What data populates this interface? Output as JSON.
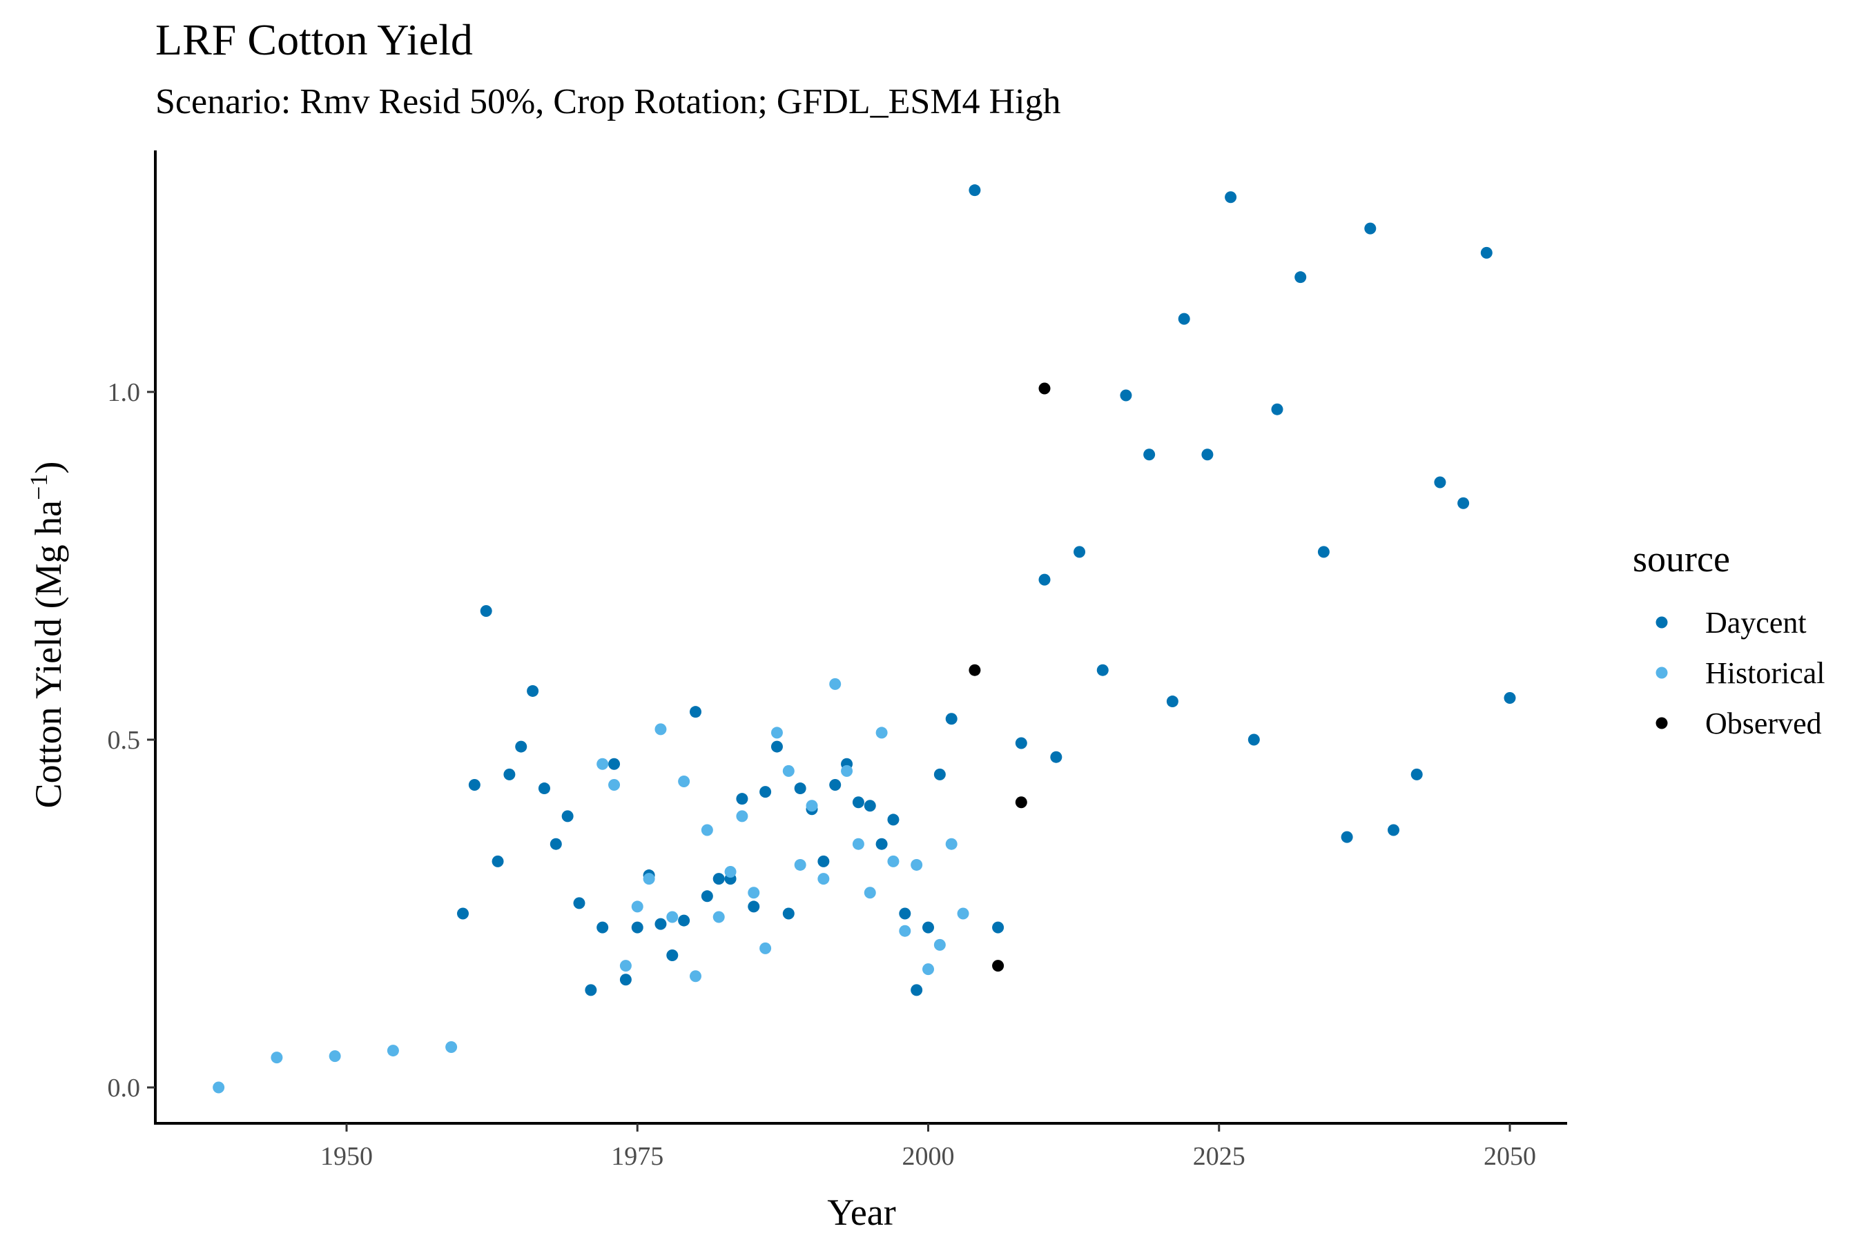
{
  "chart_data": {
    "type": "scatter",
    "title": "LRF Cotton Yield",
    "subtitle": "Scenario: Rmv Resid 50%, Crop Rotation; GFDL_ESM4 High",
    "xlabel": "Year",
    "ylabel_main": "Cotton Yield (Mg ha",
    "ylabel_sup": "−1",
    "ylabel_close": ")",
    "xlim": [
      1934,
      2055
    ],
    "ylim": [
      -0.06,
      1.35
    ],
    "xticks": [
      1950,
      1975,
      2000,
      2025,
      2050
    ],
    "xtick_labels": [
      "1950",
      "1975",
      "2000",
      "2025",
      "2050"
    ],
    "yticks": [
      0.0,
      0.5,
      1.0
    ],
    "ytick_labels": [
      "0.0",
      "0.5",
      "1.0"
    ],
    "grid": false,
    "legend": {
      "title": "source",
      "position": "right"
    },
    "series": [
      {
        "name": "Daycent",
        "color": "#0072B2",
        "points": [
          [
            1960,
            0.25
          ],
          [
            1961,
            0.435
          ],
          [
            1962,
            0.685
          ],
          [
            1963,
            0.325
          ],
          [
            1964,
            0.45
          ],
          [
            1965,
            0.49
          ],
          [
            1966,
            0.57
          ],
          [
            1967,
            0.43
          ],
          [
            1968,
            0.35
          ],
          [
            1969,
            0.39
          ],
          [
            1970,
            0.265
          ],
          [
            1971,
            0.14
          ],
          [
            1972,
            0.23
          ],
          [
            1973,
            0.465
          ],
          [
            1974,
            0.155
          ],
          [
            1975,
            0.23
          ],
          [
            1976,
            0.305
          ],
          [
            1977,
            0.235
          ],
          [
            1978,
            0.19
          ],
          [
            1979,
            0.24
          ],
          [
            1980,
            0.54
          ],
          [
            1981,
            0.275
          ],
          [
            1982,
            0.3
          ],
          [
            1983,
            0.3
          ],
          [
            1984,
            0.415
          ],
          [
            1985,
            0.26
          ],
          [
            1986,
            0.425
          ],
          [
            1987,
            0.49
          ],
          [
            1988,
            0.25
          ],
          [
            1989,
            0.43
          ],
          [
            1990,
            0.4
          ],
          [
            1991,
            0.325
          ],
          [
            1992,
            0.435
          ],
          [
            1993,
            0.465
          ],
          [
            1994,
            0.41
          ],
          [
            1995,
            0.405
          ],
          [
            1996,
            0.35
          ],
          [
            1997,
            0.385
          ],
          [
            1998,
            0.25
          ],
          [
            1999,
            0.14
          ],
          [
            2000,
            0.23
          ],
          [
            2001,
            0.45
          ],
          [
            2002,
            0.53
          ],
          [
            2004,
            1.29
          ],
          [
            2006,
            0.23
          ],
          [
            2008,
            0.495
          ],
          [
            2010,
            0.73
          ],
          [
            2011,
            0.475
          ],
          [
            2013,
            0.77
          ],
          [
            2015,
            0.6
          ],
          [
            2017,
            0.995
          ],
          [
            2019,
            0.91
          ],
          [
            2021,
            0.555
          ],
          [
            2022,
            1.105
          ],
          [
            2024,
            0.91
          ],
          [
            2026,
            1.28
          ],
          [
            2028,
            0.5
          ],
          [
            2030,
            0.975
          ],
          [
            2032,
            1.165
          ],
          [
            2034,
            0.77
          ],
          [
            2036,
            0.36
          ],
          [
            2038,
            1.235
          ],
          [
            2040,
            0.37
          ],
          [
            2042,
            0.45
          ],
          [
            2044,
            0.87
          ],
          [
            2046,
            0.84
          ],
          [
            2048,
            1.2
          ],
          [
            2050,
            0.56
          ]
        ]
      },
      {
        "name": "Historical",
        "color": "#56B4E9",
        "points": [
          [
            1939,
            0.0
          ],
          [
            1944,
            0.043
          ],
          [
            1949,
            0.045
          ],
          [
            1954,
            0.053
          ],
          [
            1959,
            0.058
          ],
          [
            1972,
            0.465
          ],
          [
            1973,
            0.435
          ],
          [
            1974,
            0.175
          ],
          [
            1975,
            0.26
          ],
          [
            1976,
            0.3
          ],
          [
            1977,
            0.515
          ],
          [
            1978,
            0.245
          ],
          [
            1979,
            0.44
          ],
          [
            1980,
            0.16
          ],
          [
            1981,
            0.37
          ],
          [
            1982,
            0.245
          ],
          [
            1983,
            0.31
          ],
          [
            1984,
            0.39
          ],
          [
            1985,
            0.28
          ],
          [
            1986,
            0.2
          ],
          [
            1987,
            0.51
          ],
          [
            1988,
            0.455
          ],
          [
            1989,
            0.32
          ],
          [
            1990,
            0.405
          ],
          [
            1991,
            0.3
          ],
          [
            1992,
            0.58
          ],
          [
            1993,
            0.455
          ],
          [
            1994,
            0.35
          ],
          [
            1995,
            0.28
          ],
          [
            1996,
            0.51
          ],
          [
            1997,
            0.325
          ],
          [
            1998,
            0.225
          ],
          [
            1999,
            0.32
          ],
          [
            2000,
            0.17
          ],
          [
            2001,
            0.205
          ],
          [
            2002,
            0.35
          ],
          [
            2003,
            0.25
          ]
        ]
      },
      {
        "name": "Observed",
        "color": "#000000",
        "points": [
          [
            2004,
            0.6
          ],
          [
            2006,
            0.175
          ],
          [
            2008,
            0.41
          ],
          [
            2010,
            1.005
          ]
        ]
      }
    ]
  }
}
